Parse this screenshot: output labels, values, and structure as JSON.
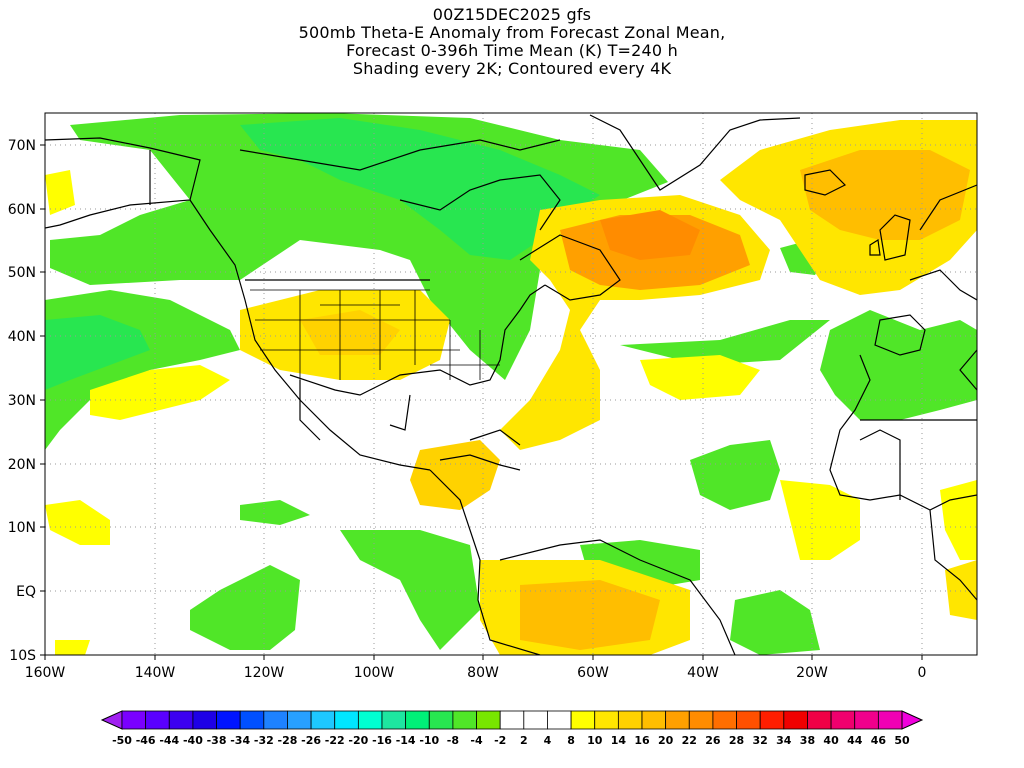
{
  "title": {
    "line1": "00Z15DEC2025 gfs",
    "line2": "500mb Theta-E Anomaly from Forecast Zonal Mean,",
    "line3": "Forecast 0-396h Time Mean (K) T=240 h",
    "line4": "Shading every 2K; Contoured every 4K"
  },
  "axes": {
    "lat_labels": [
      "70N",
      "60N",
      "50N",
      "40N",
      "30N",
      "20N",
      "10N",
      "EQ",
      "10S"
    ],
    "lon_labels": [
      "160W",
      "140W",
      "120W",
      "100W",
      "80W",
      "60W",
      "40W",
      "20W",
      "0"
    ],
    "lat_range": [
      -10,
      75
    ],
    "lon_range": [
      -160,
      10
    ],
    "grid": "dotted"
  },
  "colorbar": {
    "labels": [
      "-50",
      "-46",
      "-44",
      "-40",
      "-38",
      "-34",
      "-32",
      "-28",
      "-26",
      "-22",
      "-20",
      "-16",
      "-14",
      "-10",
      "-8",
      "-4",
      "-2",
      "2",
      "4",
      "8",
      "10",
      "14",
      "16",
      "20",
      "22",
      "26",
      "28",
      "32",
      "34",
      "38",
      "40",
      "44",
      "46",
      "50"
    ],
    "colors": [
      "#a020f0",
      "#7a00ff",
      "#5a00ff",
      "#3c00f0",
      "#1e00e6",
      "#0014ff",
      "#0050ff",
      "#1e82ff",
      "#28a0ff",
      "#1ec8ff",
      "#00e6ff",
      "#00ffd2",
      "#1ee6a0",
      "#00f078",
      "#28e650",
      "#50e628",
      "#78e600",
      "#ffffff",
      "#ffffff",
      "#ffffff",
      "#ffff00",
      "#ffe600",
      "#ffd200",
      "#ffbe00",
      "#ffa000",
      "#ff8c00",
      "#ff6e00",
      "#ff5000",
      "#ff1e00",
      "#f00000",
      "#f00046",
      "#f0006e",
      "#f0008c",
      "#f000b4",
      "#f000dc"
    ]
  }
}
